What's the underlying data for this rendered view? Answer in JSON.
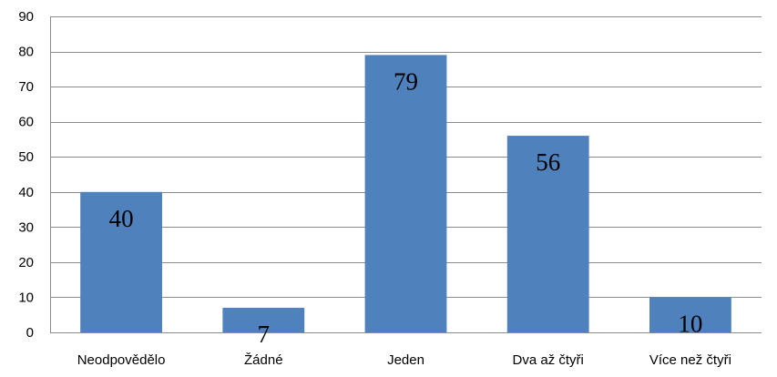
{
  "chart_data": {
    "type": "bar",
    "title": "",
    "xlabel": "",
    "ylabel": "",
    "categories": [
      "Neodpovědělo",
      "Žádné",
      "Jeden",
      "Dva až čtyři",
      "Více než čtyři"
    ],
    "values": [
      40,
      7,
      79,
      56,
      10
    ],
    "data_labels": [
      "40",
      "7",
      "79",
      "56",
      "10"
    ],
    "ylim": [
      0,
      90
    ],
    "yticks": [
      0,
      10,
      20,
      30,
      40,
      50,
      60,
      70,
      80,
      90
    ],
    "ytick_labels": [
      "0",
      "10",
      "20",
      "30",
      "40",
      "50",
      "60",
      "70",
      "80",
      "90"
    ],
    "grid": true,
    "legend": "none",
    "bar_color": "#4f81bd",
    "grid_color": "#8c8c8c"
  }
}
